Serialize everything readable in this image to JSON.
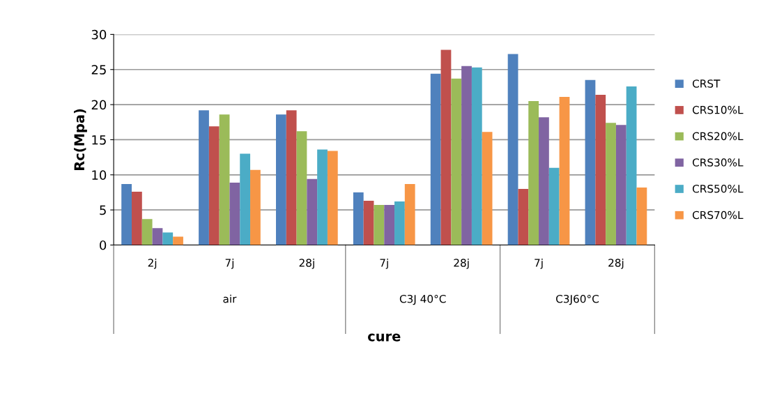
{
  "chart_data": {
    "type": "bar",
    "xlabel": "cure",
    "ylabel": "Rc(Mpa)",
    "categories": [
      "2j",
      "7j",
      "28j",
      "7j",
      "28j",
      "7j",
      "28j"
    ],
    "series": [
      {
        "name": "CRST",
        "color": "#4f81bd",
        "values": [
          8.7,
          19.2,
          18.6,
          7.5,
          24.4,
          27.2,
          23.5
        ]
      },
      {
        "name": "CRS10%L",
        "color": "#c0504d",
        "values": [
          7.6,
          16.9,
          19.2,
          6.3,
          27.8,
          8.0,
          21.4
        ]
      },
      {
        "name": "CRS20%L",
        "color": "#9bbb59",
        "values": [
          3.7,
          18.6,
          16.2,
          5.7,
          23.7,
          20.5,
          17.4
        ]
      },
      {
        "name": "CRS30%L",
        "color": "#8064a2",
        "values": [
          2.4,
          8.9,
          9.4,
          5.7,
          25.5,
          18.2,
          17.1
        ]
      },
      {
        "name": "CRS50%L",
        "color": "#4bacc6",
        "values": [
          1.8,
          13.0,
          13.6,
          6.2,
          25.3,
          11.0,
          22.6
        ]
      },
      {
        "name": "CRS70%L",
        "color": "#f79646",
        "values": [
          1.2,
          10.7,
          13.4,
          8.7,
          16.1,
          21.1,
          8.2
        ]
      }
    ],
    "annotations": [
      "air",
      "C3J 40°C",
      "C3J60°C"
    ],
    "ylim": [
      0,
      30
    ],
    "yticks": [
      0,
      5,
      10,
      15,
      20,
      25,
      30
    ],
    "grid": "y",
    "legend": "right"
  }
}
